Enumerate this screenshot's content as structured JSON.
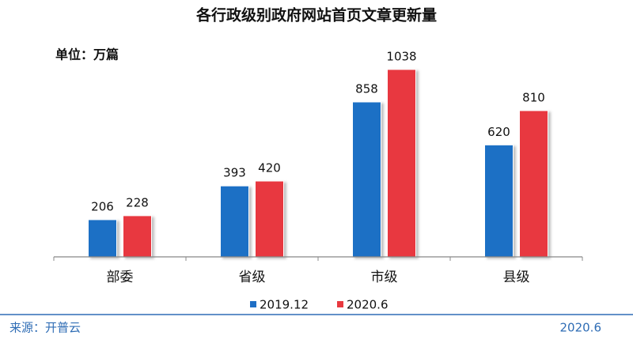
{
  "chart_data": {
    "type": "bar",
    "title": "各行政级别政府网站首页文章更新量",
    "unit_label": "单位：万篇",
    "categories": [
      "部委",
      "省级",
      "市级",
      "县级"
    ],
    "series": [
      {
        "name": "2019.12",
        "color": "#1f6fc5",
        "values": [
          206,
          393,
          858,
          620
        ]
      },
      {
        "name": "2020.6",
        "color": "#e8393f",
        "values": [
          228,
          420,
          1038,
          810
        ]
      }
    ],
    "ylim": [
      0,
      1160
    ],
    "source": "来源：开普云",
    "date": "2020.6"
  }
}
